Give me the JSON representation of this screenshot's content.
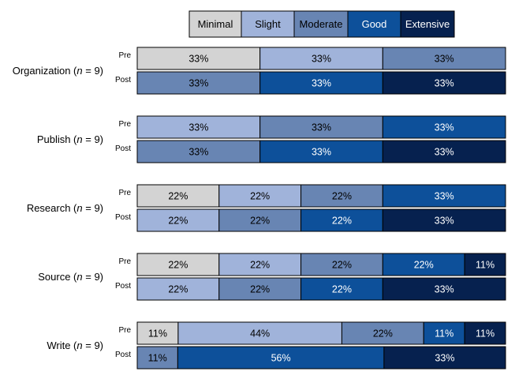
{
  "chart_data": {
    "type": "bar",
    "orientation": "horizontal",
    "stacked": true,
    "normalized": true,
    "legend": {
      "placement": "top",
      "entries": [
        {
          "name": "Minimal",
          "color": "#d3d3d3",
          "text_color": "#000000"
        },
        {
          "name": "Slight",
          "color": "#a0b3da",
          "text_color": "#000000"
        },
        {
          "name": "Moderate",
          "color": "#6885b3",
          "text_color": "#000000"
        },
        {
          "name": "Good",
          "color": "#0d509a",
          "text_color": "#ffffff"
        },
        {
          "name": "Extensive",
          "color": "#06214f",
          "text_color": "#ffffff"
        }
      ]
    },
    "row_labels": [
      "Pre",
      "Post"
    ],
    "categories": [
      {
        "label_prefix": "Organization (",
        "n_symbol": "n",
        "label_suffix": " = 9)",
        "rows": [
          {
            "label": "Pre",
            "values": [
              33,
              33,
              33,
              0,
              0
            ],
            "labels": [
              "33%",
              "33%",
              "33%",
              "",
              ""
            ]
          },
          {
            "label": "Post",
            "values": [
              0,
              0,
              33,
              33,
              33
            ],
            "labels": [
              "",
              "",
              "33%",
              "33%",
              "33%"
            ]
          }
        ]
      },
      {
        "label_prefix": "Publish (",
        "n_symbol": "n",
        "label_suffix": " = 9)",
        "rows": [
          {
            "label": "Pre",
            "values": [
              0,
              33,
              33,
              33,
              0
            ],
            "labels": [
              "",
              "33%",
              "33%",
              "33%",
              ""
            ]
          },
          {
            "label": "Post",
            "values": [
              0,
              0,
              33,
              33,
              33
            ],
            "labels": [
              "",
              "",
              "33%",
              "33%",
              "33%"
            ]
          }
        ]
      },
      {
        "label_prefix": "Research (",
        "n_symbol": "n",
        "label_suffix": " = 9)",
        "rows": [
          {
            "label": "Pre",
            "values": [
              22,
              22,
              22,
              33,
              0
            ],
            "labels": [
              "22%",
              "22%",
              "22%",
              "33%",
              ""
            ]
          },
          {
            "label": "Post",
            "values": [
              0,
              22,
              22,
              22,
              33
            ],
            "labels": [
              "",
              "22%",
              "22%",
              "22%",
              "33%"
            ]
          }
        ]
      },
      {
        "label_prefix": "Source (",
        "n_symbol": "n",
        "label_suffix": " = 9)",
        "rows": [
          {
            "label": "Pre",
            "values": [
              22,
              22,
              22,
              22,
              11
            ],
            "labels": [
              "22%",
              "22%",
              "22%",
              "22%",
              "11%"
            ]
          },
          {
            "label": "Post",
            "values": [
              0,
              22,
              22,
              22,
              33
            ],
            "labels": [
              "",
              "22%",
              "22%",
              "22%",
              "33%"
            ]
          }
        ]
      },
      {
        "label_prefix": "Write (",
        "n_symbol": "n",
        "label_suffix": " = 9)",
        "rows": [
          {
            "label": "Pre",
            "values": [
              11,
              44,
              22,
              11,
              11
            ],
            "labels": [
              "11%",
              "44%",
              "22%",
              "11%",
              "11%"
            ]
          },
          {
            "label": "Post",
            "values": [
              0,
              0,
              11,
              56,
              33
            ],
            "labels": [
              "",
              "",
              "11%",
              "56%",
              "33%"
            ]
          }
        ]
      }
    ]
  }
}
